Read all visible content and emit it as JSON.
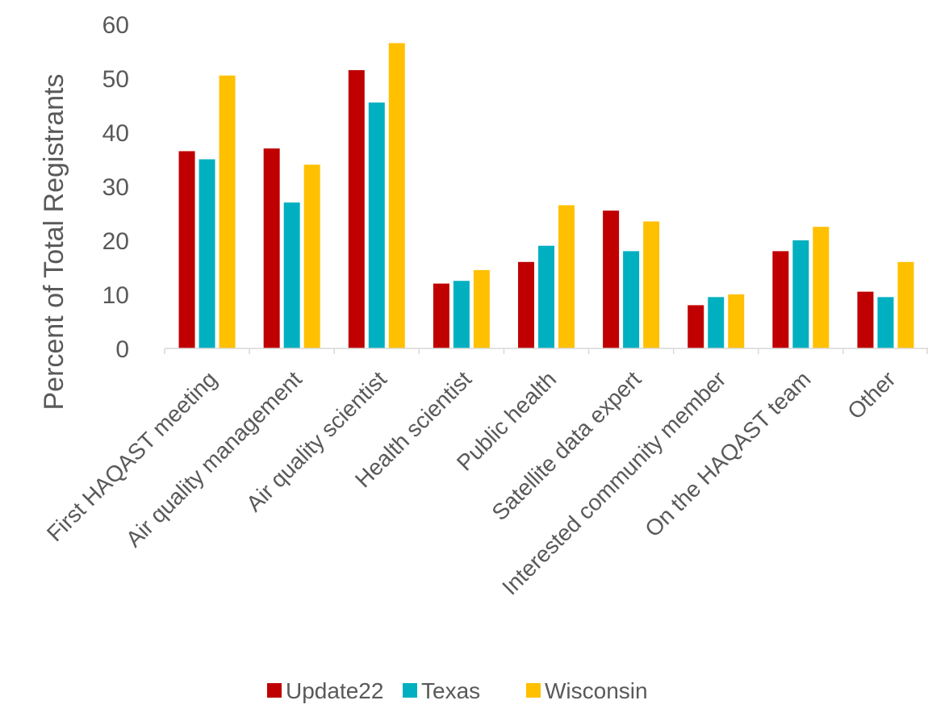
{
  "chart_data": {
    "type": "bar",
    "title": "",
    "xlabel": "",
    "ylabel": "Percent of Total Registrants",
    "ylim": [
      0,
      60
    ],
    "yticks": [
      0,
      10,
      20,
      30,
      40,
      50,
      60
    ],
    "grid": false,
    "legend_position": "bottom",
    "categories": [
      "First HAQAST meeting",
      "Air quality management",
      "Air quality scientist",
      "Health scientist",
      "Public health",
      "Satellite data expert",
      "Interested community member",
      "On the HAQAST team",
      "Other"
    ],
    "series": [
      {
        "name": "Update22",
        "color": "#C00000",
        "values": [
          36.5,
          37,
          51.5,
          12,
          16,
          25.5,
          8,
          18,
          10.5
        ]
      },
      {
        "name": "Texas",
        "color": "#00B0C0",
        "values": [
          35,
          27,
          45.5,
          12.5,
          19,
          18,
          9.5,
          20,
          9.5
        ]
      },
      {
        "name": "Wisconsin",
        "color": "#FFC000",
        "values": [
          50.5,
          34,
          56.5,
          14.5,
          26.5,
          23.5,
          10,
          22.5,
          16
        ]
      }
    ]
  }
}
